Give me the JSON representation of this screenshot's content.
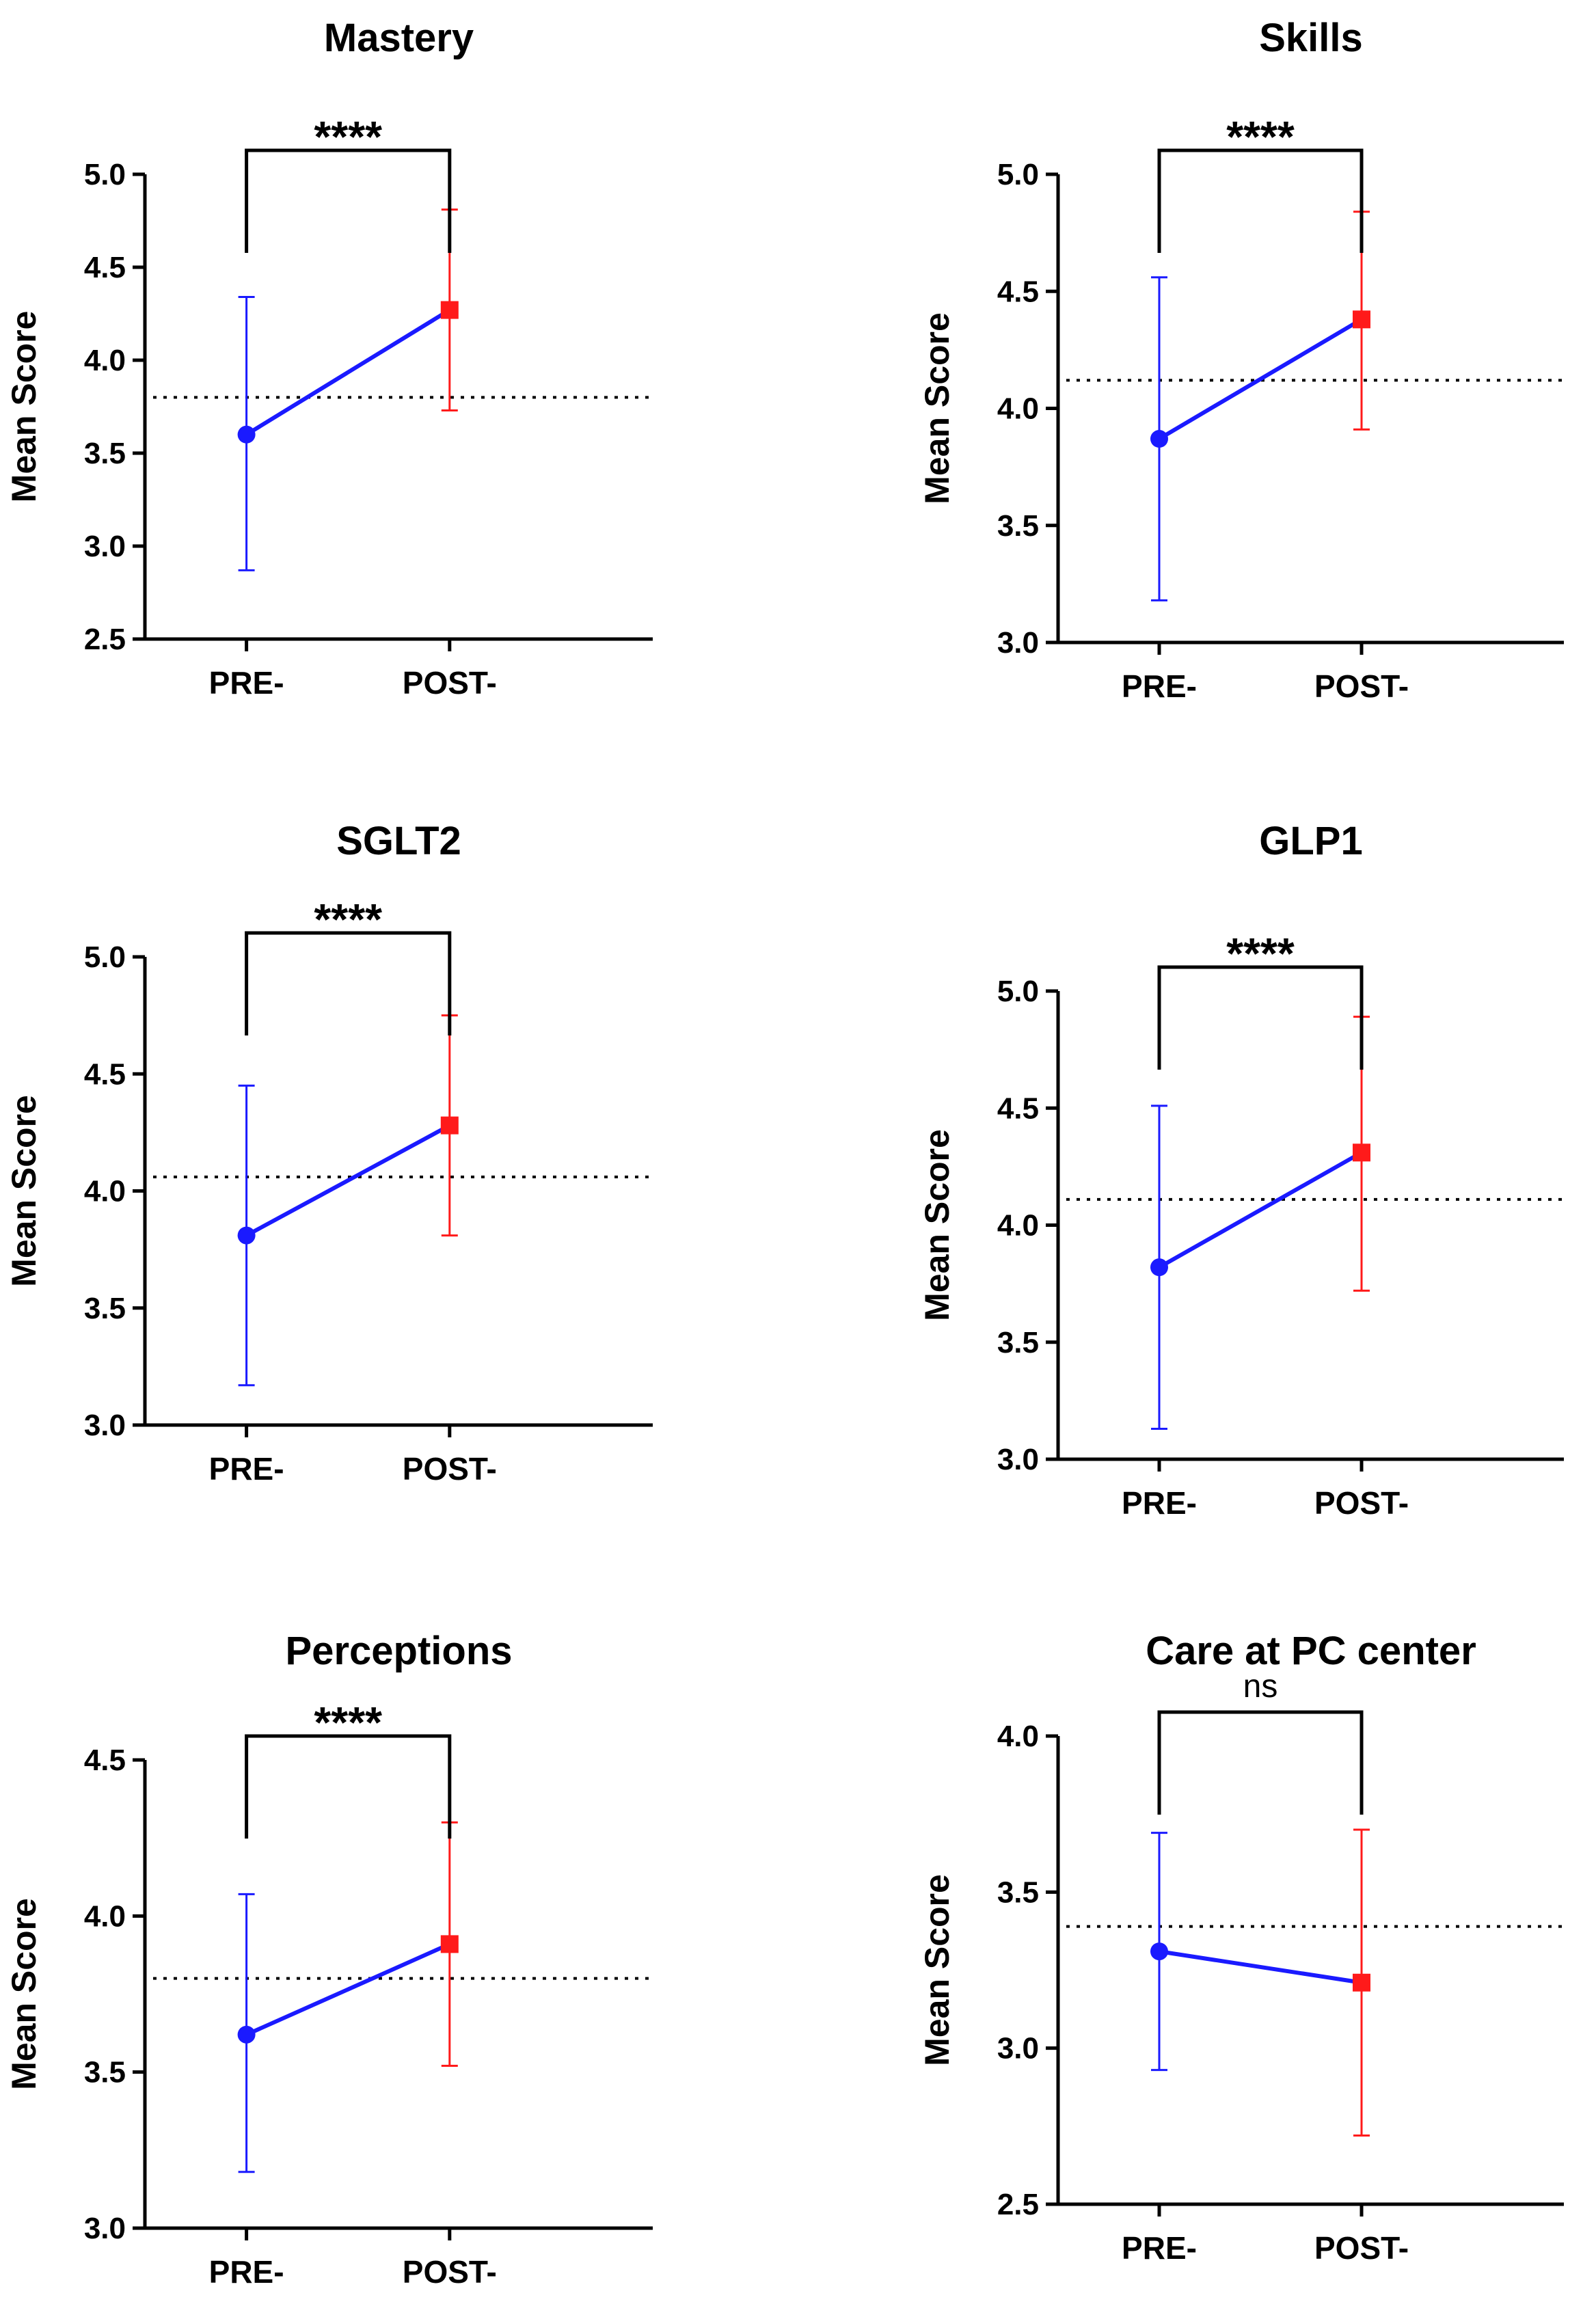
{
  "colors": {
    "pre": "#1a1aff",
    "post": "#ff1a1a",
    "axis": "#000000"
  },
  "chart_data": [
    {
      "type": "line",
      "title": "Mastery",
      "ylabel": "Mean Score",
      "categories": [
        "PRE-",
        "POST-"
      ],
      "values": [
        3.6,
        4.27
      ],
      "error_bars": [
        [
          2.87,
          4.34
        ],
        [
          3.73,
          4.81
        ]
      ],
      "reference_line": 3.8,
      "ylim": [
        2.5,
        5.0
      ],
      "yticks": [
        "2.5",
        "3.0",
        "3.5",
        "4.0",
        "4.5",
        "5.0"
      ],
      "significance": "****"
    },
    {
      "type": "line",
      "title": "Skills",
      "ylabel": "Mean Score",
      "categories": [
        "PRE-",
        "POST-"
      ],
      "values": [
        3.87,
        4.38
      ],
      "error_bars": [
        [
          3.18,
          4.56
        ],
        [
          3.91,
          4.84
        ]
      ],
      "reference_line": 4.12,
      "ylim": [
        3.0,
        5.0
      ],
      "yticks": [
        "3.0",
        "3.5",
        "4.0",
        "4.5",
        "5.0"
      ],
      "significance": "****"
    },
    {
      "type": "line",
      "title": "SGLT2",
      "ylabel": "Mean Score",
      "categories": [
        "PRE-",
        "POST-"
      ],
      "values": [
        3.81,
        4.28
      ],
      "error_bars": [
        [
          3.17,
          4.45
        ],
        [
          3.81,
          4.75
        ]
      ],
      "reference_line": 4.06,
      "ylim": [
        3.0,
        5.0
      ],
      "yticks": [
        "3.0",
        "3.5",
        "4.0",
        "4.5",
        "5.0"
      ],
      "significance": "****"
    },
    {
      "type": "line",
      "title": "GLP1",
      "ylabel": "Mean Score",
      "categories": [
        "PRE-",
        "POST-"
      ],
      "values": [
        3.82,
        4.31
      ],
      "error_bars": [
        [
          3.13,
          4.51
        ],
        [
          3.72,
          4.89
        ]
      ],
      "reference_line": 4.11,
      "ylim": [
        3.0,
        5.0
      ],
      "yticks": [
        "3.0",
        "3.5",
        "4.0",
        "4.5",
        "5.0"
      ],
      "significance": "****"
    },
    {
      "type": "line",
      "title": "Perceptions",
      "ylabel": "Mean Score",
      "categories": [
        "PRE-",
        "POST-"
      ],
      "values": [
        3.62,
        3.91
      ],
      "error_bars": [
        [
          3.18,
          4.07
        ],
        [
          3.52,
          4.3
        ]
      ],
      "reference_line": 3.8,
      "ylim": [
        3.0,
        4.5
      ],
      "yticks": [
        "3.0",
        "3.5",
        "4.0",
        "4.5"
      ],
      "significance": "****"
    },
    {
      "type": "line",
      "title": "Care at  PC center",
      "ylabel": "Mean Score",
      "categories": [
        "PRE-",
        "POST-"
      ],
      "values": [
        3.31,
        3.21
      ],
      "error_bars": [
        [
          2.93,
          3.69
        ],
        [
          2.72,
          3.7
        ]
      ],
      "reference_line": 3.39,
      "ylim": [
        2.5,
        4.0
      ],
      "yticks": [
        "2.5",
        "3.0",
        "3.5",
        "4.0"
      ],
      "significance": "ns"
    }
  ]
}
